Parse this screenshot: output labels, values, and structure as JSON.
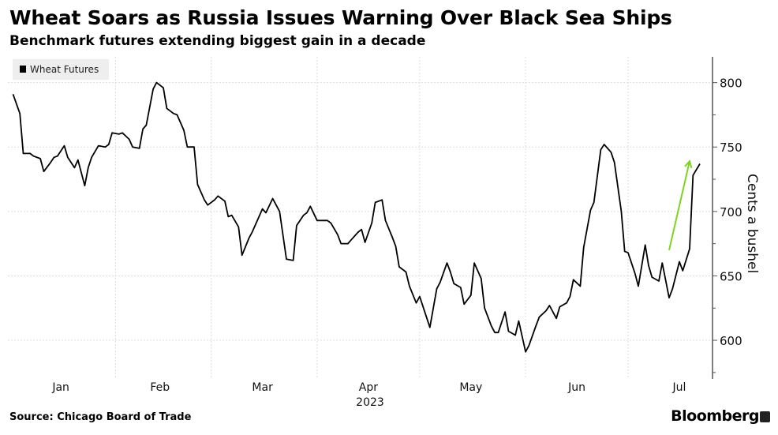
{
  "header": {
    "title": "Wheat Soars as Russia Issues Warning Over Black Sea Ships",
    "subtitle": "Benchmark futures extending biggest gain in a decade"
  },
  "footer": {
    "source": "Source: Chicago Board of Trade",
    "brand": "Bloomberg"
  },
  "colors": {
    "line": "#000000",
    "arrow": "#7ED321",
    "grid": "#dddddd",
    "legend_bg": "#eeeeee"
  },
  "chart_data": {
    "type": "line",
    "title": "Wheat Soars as Russia Issues Warning Over Black Sea Ships",
    "subtitle": "Benchmark futures extending biggest gain in a decade",
    "xlabel": "2023",
    "ylabel": "Cents a bushel",
    "x_unit": "day of year 2023",
    "xlim": [
      -0.5,
      205.7
    ],
    "ylim": [
      570,
      820
    ],
    "yticks": [
      600,
      650,
      700,
      750,
      800
    ],
    "xticks": [
      {
        "label": "Jan",
        "day": 15
      },
      {
        "label": "Feb",
        "day": 44
      },
      {
        "label": "Mar",
        "day": 74
      },
      {
        "label": "Apr",
        "day": 105
      },
      {
        "label": "May",
        "day": 135
      },
      {
        "label": "Jun",
        "day": 166
      },
      {
        "label": "Jul",
        "day": 196
      }
    ],
    "x_gridlines": [
      31,
      59,
      90,
      120,
      151,
      181
    ],
    "year_label": "2023",
    "grid": true,
    "legend": {
      "position": "top-left",
      "entries": [
        "Wheat Futures"
      ]
    },
    "annotation": {
      "type": "arrow",
      "from": {
        "day": 193,
        "value": 670
      },
      "to": {
        "day": 199,
        "value": 739
      }
    },
    "series": [
      {
        "name": "Wheat Futures",
        "x": [
          1,
          3,
          4,
          6,
          7,
          9,
          10,
          12,
          13,
          14,
          16,
          17,
          19,
          20,
          22,
          23,
          24,
          26,
          28,
          29,
          30,
          32,
          33,
          35,
          36,
          38,
          39,
          40,
          42,
          43,
          45,
          46,
          48,
          49,
          51,
          52,
          54,
          55,
          57,
          58,
          60,
          61,
          63,
          64,
          65,
          67,
          68,
          70,
          71,
          73,
          74,
          75,
          77,
          79,
          81,
          83,
          84,
          86,
          87,
          88,
          90,
          91,
          93,
          94,
          96,
          97,
          99,
          100,
          102,
          103,
          104,
          106,
          107,
          109,
          110,
          112,
          113,
          114,
          116,
          117,
          119,
          120,
          122,
          123,
          125,
          126,
          128,
          129,
          130,
          132,
          133,
          135,
          136,
          138,
          139,
          141,
          142,
          143,
          145,
          146,
          148,
          149,
          151,
          152,
          154,
          155,
          157,
          158,
          160,
          161,
          163,
          164,
          165,
          167,
          168,
          170,
          171,
          173,
          174,
          176,
          177,
          179,
          180,
          181,
          183,
          184,
          186,
          187,
          188,
          190,
          191,
          193,
          194,
          196,
          197,
          199,
          200,
          202
        ],
        "values": [
          791,
          776,
          745,
          745,
          743,
          741,
          731,
          738,
          742,
          743,
          751,
          742,
          734,
          740,
          720,
          734,
          742,
          751,
          750,
          752,
          761,
          760,
          761,
          756,
          750,
          749,
          764,
          767,
          795,
          800,
          796,
          780,
          776,
          775,
          763,
          750,
          750,
          721,
          709,
          705,
          709,
          712,
          708,
          696,
          697,
          688,
          666,
          679,
          684,
          696,
          702,
          699,
          710,
          700,
          663,
          662,
          689,
          697,
          699,
          704,
          693,
          693,
          693,
          691,
          682,
          675,
          675,
          678,
          684,
          686,
          676,
          691,
          707,
          709,
          693,
          680,
          673,
          657,
          653,
          642,
          629,
          634,
          618,
          610,
          640,
          645,
          660,
          653,
          644,
          641,
          628,
          635,
          660,
          648,
          625,
          611,
          606,
          606,
          622,
          607,
          604,
          615,
          591,
          596,
          611,
          618,
          623,
          627,
          617,
          626,
          629,
          634,
          647,
          642,
          672,
          701,
          707,
          748,
          752,
          746,
          738,
          700,
          669,
          668,
          652,
          642,
          674,
          658,
          649,
          646,
          660,
          633,
          640,
          661,
          654,
          671,
          728,
          737
        ]
      }
    ]
  }
}
